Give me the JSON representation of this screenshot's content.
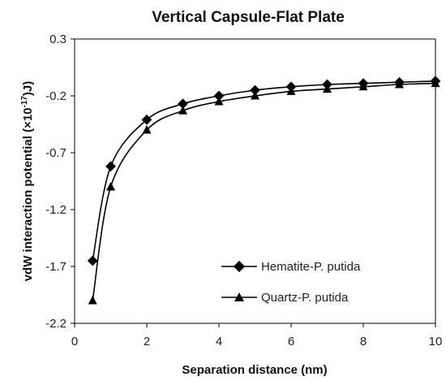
{
  "chart_data": {
    "type": "line",
    "title": "Vertical Capsule-Flat Plate",
    "xlabel": "Separation distance (nm)",
    "ylabel": {
      "prefix": "vdW interaction potential (×10",
      "exponent": "-17",
      "suffix": ")J)"
    },
    "xlim": [
      0,
      10
    ],
    "ylim": [
      -2.2,
      0.3
    ],
    "x_ticks": [
      "0",
      "2",
      "4",
      "6",
      "8",
      "10"
    ],
    "y_ticks": [
      "0.3",
      "-0.2",
      "-0.7",
      "-1.2",
      "-1.7",
      "-2.2"
    ],
    "grid": false,
    "legend_position": "bottom-right",
    "series": [
      {
        "name": "Hematite-P. putida",
        "marker": "diamond",
        "color": "#000000",
        "x": [
          0.5,
          1,
          2,
          3,
          4,
          5,
          6,
          7,
          8,
          9,
          10
        ],
        "y": [
          -1.65,
          -0.82,
          -0.41,
          -0.27,
          -0.2,
          -0.15,
          -0.12,
          -0.1,
          -0.09,
          -0.08,
          -0.07
        ]
      },
      {
        "name": "Quartz-P. putida",
        "marker": "triangle",
        "color": "#000000",
        "x": [
          0.5,
          1,
          2,
          3,
          4,
          5,
          6,
          7,
          8,
          9,
          10
        ],
        "y": [
          -2.0,
          -1.0,
          -0.5,
          -0.33,
          -0.25,
          -0.2,
          -0.16,
          -0.14,
          -0.12,
          -0.1,
          -0.09
        ]
      }
    ]
  }
}
